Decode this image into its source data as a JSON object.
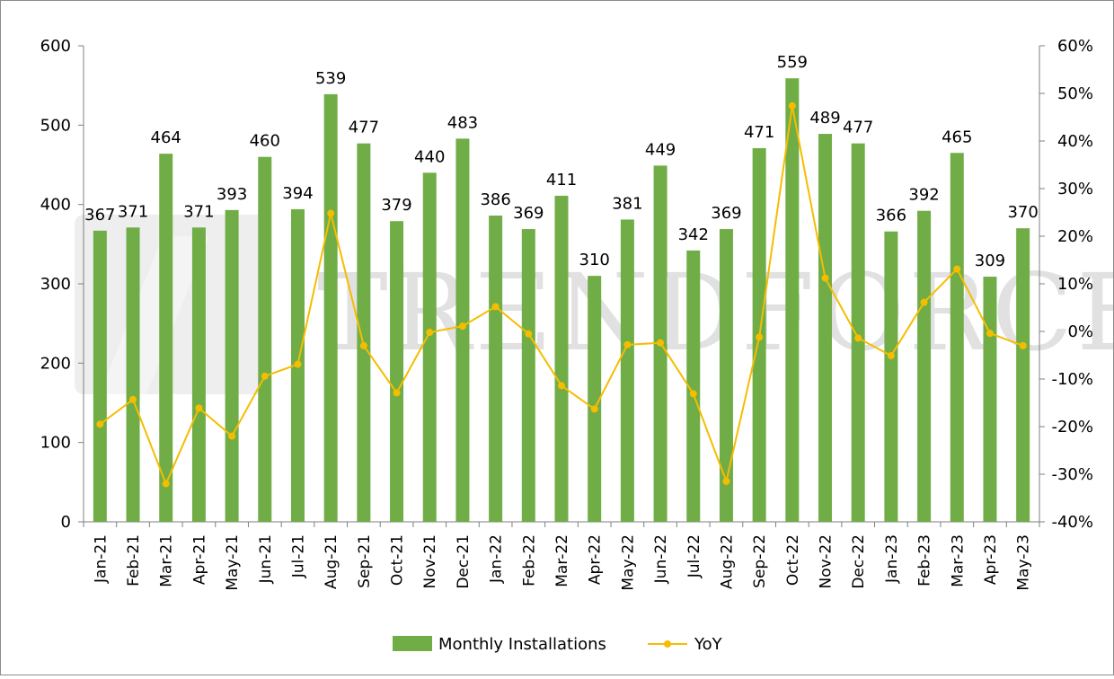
{
  "watermark": "TRENDFORCE",
  "colors": {
    "bar": "#70ad47",
    "line": "#f5bd00",
    "axis": "#7f7f7f"
  },
  "chart_data": {
    "type": "bar",
    "categories": [
      "Jan-21",
      "Feb-21",
      "Mar-21",
      "Apr-21",
      "May-21",
      "Jun-21",
      "Jul-21",
      "Aug-21",
      "Sep-21",
      "Oct-21",
      "Nov-21",
      "Dec-21",
      "Jan-22",
      "Feb-22",
      "Mar-22",
      "Apr-22",
      "May-22",
      "Jun-22",
      "Jul-22",
      "Aug-22",
      "Sep-22",
      "Oct-22",
      "Nov-22",
      "Dec-22",
      "Jan-23",
      "Feb-23",
      "Mar-23",
      "Apr-23",
      "May-23"
    ],
    "series": [
      {
        "name": "Monthly Installations",
        "type": "bar",
        "axis": "left",
        "values": [
          367,
          371,
          464,
          371,
          393,
          460,
          394,
          539,
          477,
          379,
          440,
          483,
          386,
          369,
          411,
          310,
          381,
          449,
          342,
          369,
          471,
          559,
          489,
          477,
          366,
          392,
          465,
          309,
          370
        ]
      },
      {
        "name": "YoY",
        "type": "line",
        "axis": "right",
        "unit": "%",
        "values": [
          -19.5,
          -14.3,
          -32.0,
          -16.1,
          -22.0,
          -9.4,
          -6.9,
          24.8,
          -3.0,
          -12.9,
          -0.2,
          1.1,
          5.2,
          -0.5,
          -11.4,
          -16.3,
          -2.8,
          -2.4,
          -13.1,
          -31.5,
          -1.2,
          47.4,
          11.2,
          -1.4,
          -5.1,
          6.1,
          13.1,
          -0.4,
          -3.0
        ]
      }
    ],
    "y_left": {
      "min": 0,
      "max": 600,
      "ticks": [
        0,
        100,
        200,
        300,
        400,
        500,
        600
      ]
    },
    "y_right": {
      "min": -40,
      "max": 60,
      "ticks": [
        "-40%",
        "-30%",
        "-20%",
        "-10%",
        "0%",
        "10%",
        "20%",
        "30%",
        "40%",
        "50%",
        "60%"
      ]
    },
    "legend": {
      "position": "bottom",
      "items": [
        "Monthly Installations",
        "YoY"
      ]
    },
    "grid": false
  }
}
